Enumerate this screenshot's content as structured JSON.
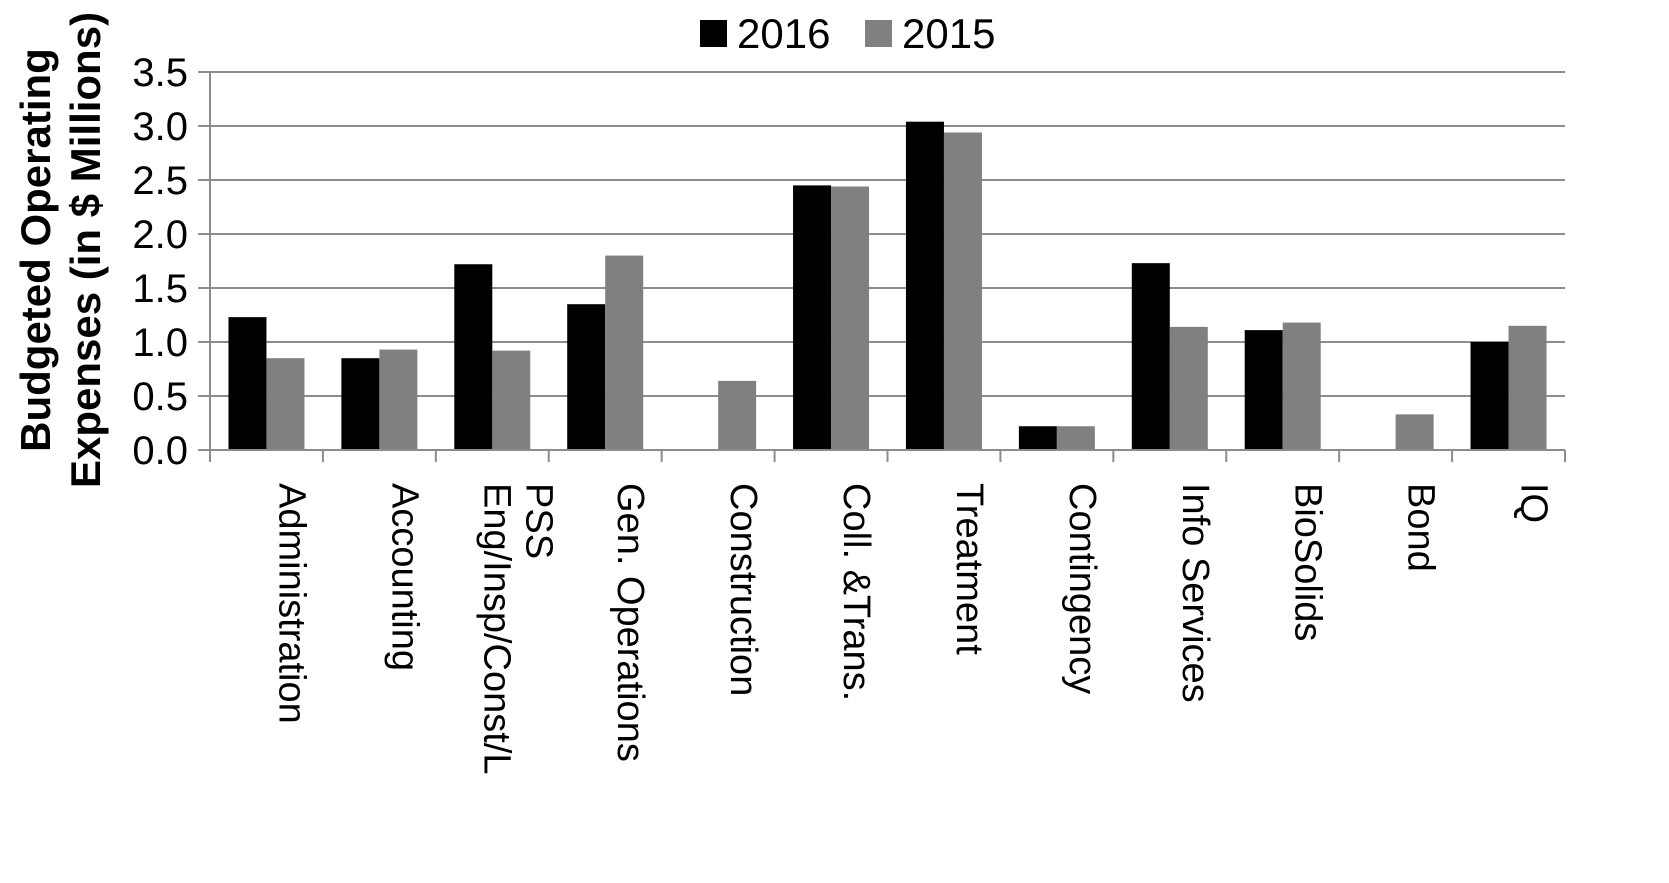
{
  "chart_data": {
    "type": "bar",
    "title": "",
    "ylabel_lines": [
      "Budgeted Operating",
      "Expenses (in $ Millions)"
    ],
    "xlabel": "",
    "ylim": [
      0,
      3.5
    ],
    "yticks": [
      "0.0",
      "0.5",
      "1.0",
      "1.5",
      "2.0",
      "2.5",
      "3.0",
      "3.5"
    ],
    "legend_position": "top-center",
    "grid": true,
    "categories": [
      [
        "Administration"
      ],
      [
        "Accounting"
      ],
      [
        "Eng/Insp/Const/L",
        "PSS"
      ],
      [
        "Gen. Operations"
      ],
      [
        "Construction"
      ],
      [
        "Coll. &Trans."
      ],
      [
        "Treatment"
      ],
      [
        "Contingency"
      ],
      [
        "Info Services"
      ],
      [
        "BioSolids"
      ],
      [
        "Bond"
      ],
      [
        "IQ"
      ]
    ],
    "series": [
      {
        "name": "2016",
        "color": "#000000",
        "values": [
          1.23,
          0.85,
          1.72,
          1.35,
          0,
          2.45,
          3.04,
          0.22,
          1.73,
          1.11,
          0,
          1.0
        ]
      },
      {
        "name": "2015",
        "color": "#808080",
        "values": [
          0.85,
          0.93,
          0.92,
          1.8,
          0.64,
          2.44,
          2.94,
          0.22,
          1.14,
          1.18,
          0.33,
          1.15
        ]
      }
    ]
  }
}
